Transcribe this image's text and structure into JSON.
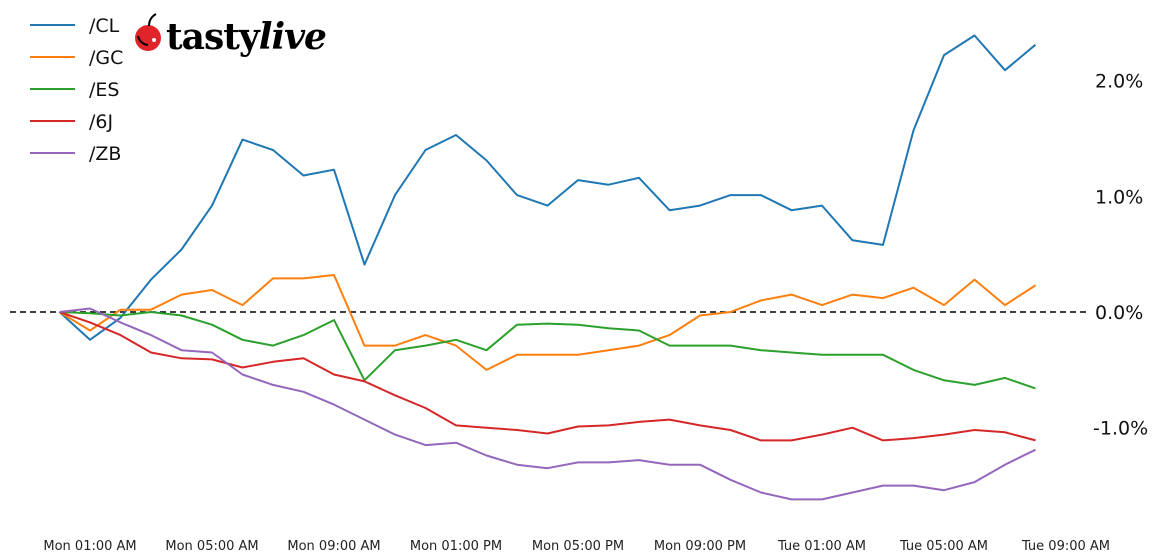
{
  "logo": {
    "text_plain": "tasty",
    "text_italic": "live",
    "icon": "cherry-icon",
    "color": "#e1232a"
  },
  "chart_data": {
    "type": "line",
    "title": "",
    "xlabel": "",
    "ylabel": "",
    "ylim": [
      -1.8,
      2.7
    ],
    "grid": false,
    "legend_position": "top-left",
    "y_axis_side": "right",
    "reference_line": {
      "y": 0,
      "style": "dashed",
      "color": "#000000"
    },
    "x_ticks": [
      "Mon 01:00 AM",
      "Mon 05:00 AM",
      "Mon 09:00 AM",
      "Mon 01:00 PM",
      "Mon 05:00 PM",
      "Mon 09:00 PM",
      "Tue 01:00 AM",
      "Tue 05:00 AM",
      "Tue 09:00 AM"
    ],
    "y_ticks": [
      {
        "value": 2.0,
        "label": "2.0%"
      },
      {
        "value": 1.0,
        "label": "1.0%"
      },
      {
        "value": 0.0,
        "label": "0.0%"
      },
      {
        "value": -1.0,
        "label": "-1.0%"
      }
    ],
    "x": [
      "Mon 00:00",
      "Mon 01:00",
      "Mon 02:00",
      "Mon 03:00",
      "Mon 04:00",
      "Mon 05:00",
      "Mon 06:00",
      "Mon 07:00",
      "Mon 08:00",
      "Mon 09:00",
      "Mon 10:00",
      "Mon 11:00",
      "Mon 12:00",
      "Mon 13:00",
      "Mon 14:00",
      "Mon 15:00",
      "Mon 16:00",
      "Mon 17:00",
      "Mon 18:00",
      "Mon 19:00",
      "Mon 20:00",
      "Mon 21:00",
      "Mon 22:00",
      "Mon 23:00",
      "Tue 00:00",
      "Tue 01:00",
      "Tue 02:00",
      "Tue 03:00",
      "Tue 04:00",
      "Tue 05:00",
      "Tue 06:00",
      "Tue 07:00",
      "Tue 08:00"
    ],
    "series": [
      {
        "name": "/CL",
        "color": "#1f77b4",
        "values": [
          0,
          -0.24,
          -0.05,
          0.28,
          0.54,
          0.92,
          1.49,
          1.4,
          1.18,
          1.23,
          0.41,
          1.01,
          1.4,
          1.53,
          1.31,
          1.01,
          0.92,
          1.14,
          1.1,
          1.16,
          0.88,
          0.92,
          1.01,
          1.01,
          0.88,
          0.92,
          0.62,
          0.58,
          1.57,
          2.22,
          2.39,
          2.09,
          2.31
        ]
      },
      {
        "name": "/GC",
        "color": "#ff7f0e",
        "values": [
          0,
          -0.16,
          0.02,
          0.02,
          0.15,
          0.19,
          0.06,
          0.29,
          0.29,
          0.32,
          -0.29,
          -0.29,
          -0.2,
          -0.29,
          -0.5,
          -0.37,
          -0.37,
          -0.37,
          -0.33,
          -0.29,
          -0.2,
          -0.03,
          0,
          0.1,
          0.15,
          0.06,
          0.15,
          0.12,
          0.21,
          0.06,
          0.28,
          0.06,
          0.23
        ]
      },
      {
        "name": "/ES",
        "color": "#2ca02c",
        "values": [
          0,
          -0.01,
          -0.03,
          0,
          -0.03,
          -0.11,
          -0.24,
          -0.29,
          -0.2,
          -0.07,
          -0.59,
          -0.33,
          -0.29,
          -0.24,
          -0.33,
          -0.11,
          -0.1,
          -0.11,
          -0.14,
          -0.16,
          -0.29,
          -0.29,
          -0.29,
          -0.33,
          -0.35,
          -0.37,
          -0.37,
          -0.37,
          -0.5,
          -0.59,
          -0.63,
          -0.57,
          -0.66
        ]
      },
      {
        "name": "/6J",
        "color": "#d62728",
        "values": [
          0,
          -0.09,
          -0.2,
          -0.35,
          -0.4,
          -0.41,
          -0.48,
          -0.43,
          -0.4,
          -0.54,
          -0.6,
          -0.72,
          -0.83,
          -0.98,
          -1.0,
          -1.02,
          -1.05,
          -0.99,
          -0.98,
          -0.95,
          -0.93,
          -0.98,
          -1.02,
          -1.11,
          -1.11,
          -1.06,
          -1.0,
          -1.11,
          -1.09,
          -1.06,
          -1.02,
          -1.04,
          -1.11
        ]
      },
      {
        "name": "/ZB",
        "color": "#9467bd",
        "values": [
          0,
          0.03,
          -0.09,
          -0.2,
          -0.33,
          -0.35,
          -0.54,
          -0.63,
          -0.69,
          -0.8,
          -0.93,
          -1.06,
          -1.15,
          -1.13,
          -1.24,
          -1.32,
          -1.35,
          -1.3,
          -1.3,
          -1.28,
          -1.32,
          -1.32,
          -1.45,
          -1.56,
          -1.62,
          -1.62,
          -1.56,
          -1.5,
          -1.5,
          -1.54,
          -1.47,
          -1.32,
          -1.19
        ]
      }
    ]
  }
}
